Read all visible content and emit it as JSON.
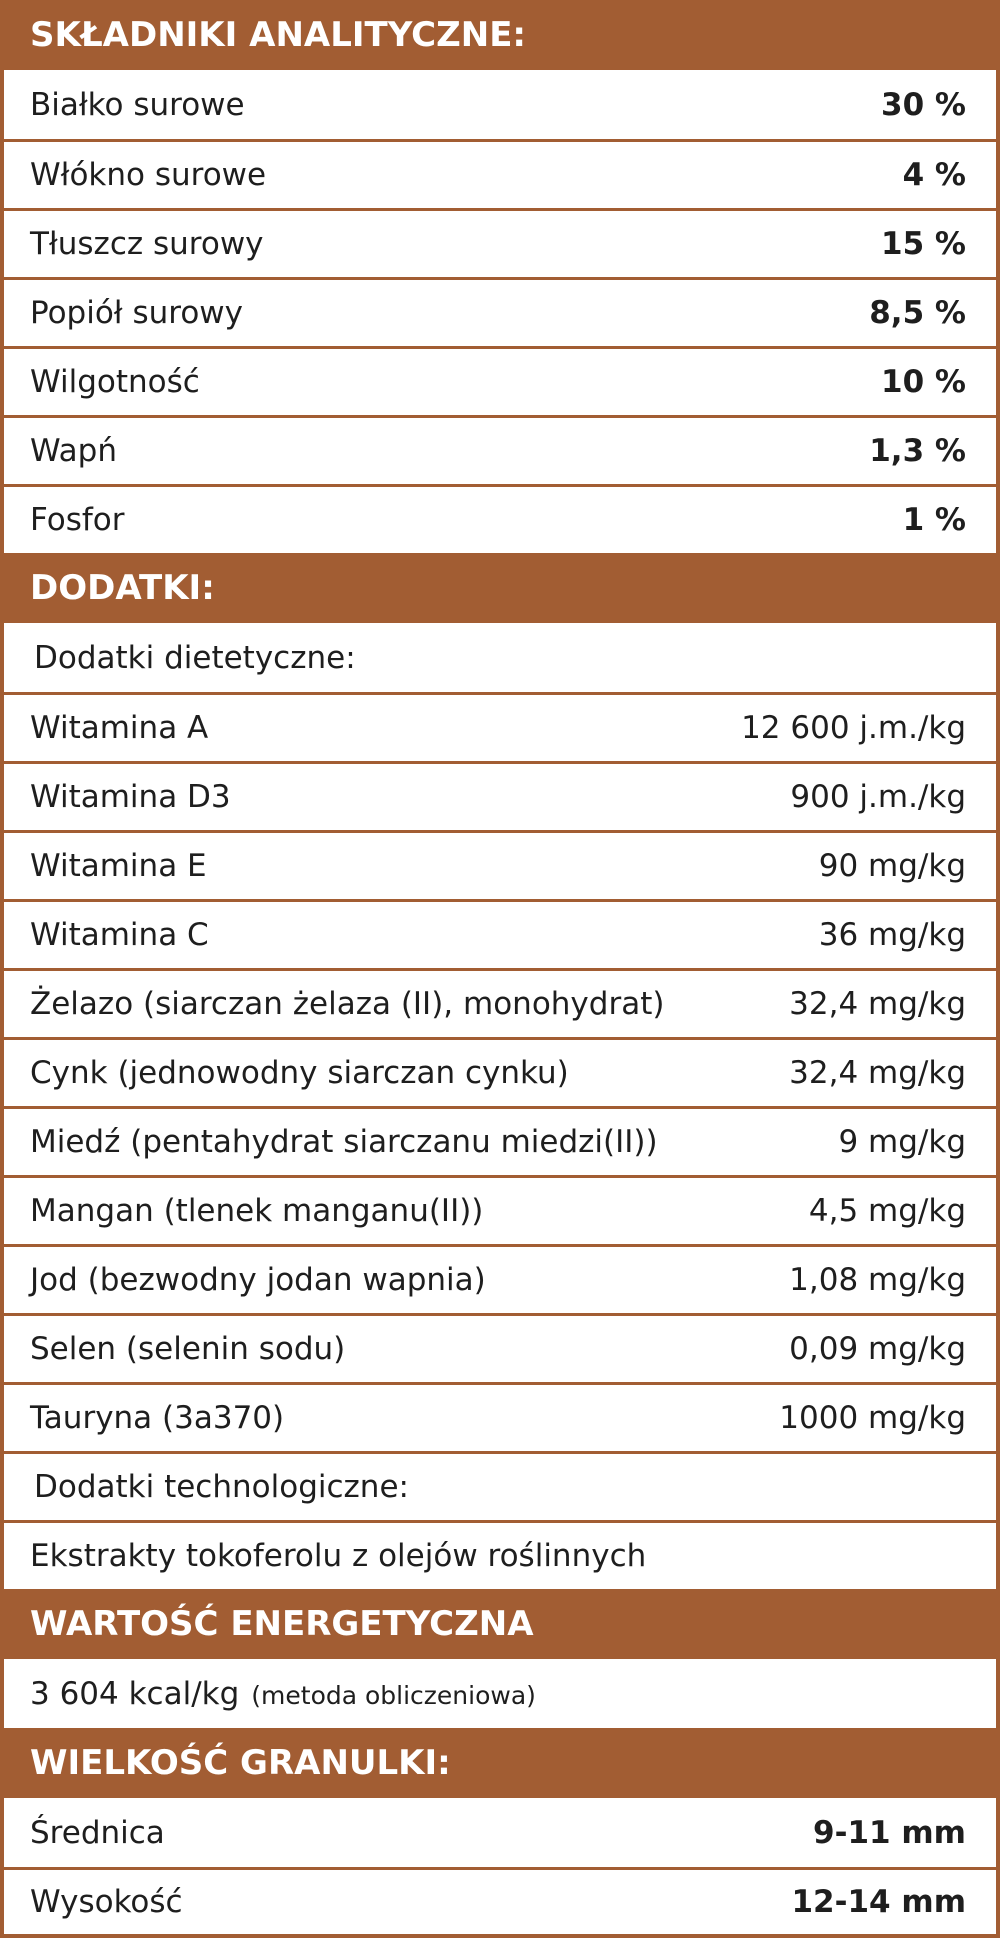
{
  "sections": [
    {
      "title": "SKŁADNIKI ANALITYCZNE:",
      "rows": [
        {
          "label": "Białko surowe",
          "value": "30 %"
        },
        {
          "label": "Włókno surowe",
          "value": "4 %"
        },
        {
          "label": "Tłuszcz surowy",
          "value": "15 %"
        },
        {
          "label": "Popiół surowy",
          "value": "8,5 %"
        },
        {
          "label": "Wilgotność",
          "value": "10 %"
        },
        {
          "label": "Wapń",
          "value": "1,3 %"
        },
        {
          "label": "Fosfor",
          "value": "1 %"
        }
      ]
    },
    {
      "title": "DODATKI:",
      "rows": [
        {
          "subtitle": "Dodatki dietetyczne:"
        },
        {
          "label": "Witamina A",
          "value": "12 600 j.m./kg"
        },
        {
          "label": "Witamina D3",
          "value": "900 j.m./kg"
        },
        {
          "label": "Witamina E",
          "value": "90 mg/kg"
        },
        {
          "label": "Witamina C",
          "value": "36 mg/kg"
        },
        {
          "label": "Żelazo (siarczan żelaza (II), monohydrat)",
          "value": "32,4 mg/kg"
        },
        {
          "label": "Cynk (jednowodny siarczan cynku)",
          "value": "32,4 mg/kg"
        },
        {
          "label": "Miedź (pentahydrat siarczanu miedzi(II))",
          "value": "9 mg/kg"
        },
        {
          "label": "Mangan (tlenek manganu(II))",
          "value": "4,5 mg/kg"
        },
        {
          "label": "Jod (bezwodny jodan wapnia)",
          "value": "1,08 mg/kg"
        },
        {
          "label": "Selen (selenin sodu)",
          "value": "0,09 mg/kg"
        },
        {
          "label": "Tauryna (3a370)",
          "value": "1000 mg/kg"
        },
        {
          "subtitle": "Dodatki technologiczne:"
        },
        {
          "label": "Ekstrakty tokoferolu z olejów roślinnych"
        }
      ]
    },
    {
      "title": "WARTOŚĆ ENERGETYCZNA",
      "rows": [
        {
          "label": "3 604 kcal/kg",
          "note": "(metoda obliczeniowa)"
        }
      ]
    },
    {
      "title": "WIELKOŚĆ GRANULKI:",
      "rows": [
        {
          "label": "Średnica",
          "value": "9-11 mm"
        },
        {
          "label": "Wysokość",
          "value": "12-14 mm"
        }
      ]
    }
  ]
}
